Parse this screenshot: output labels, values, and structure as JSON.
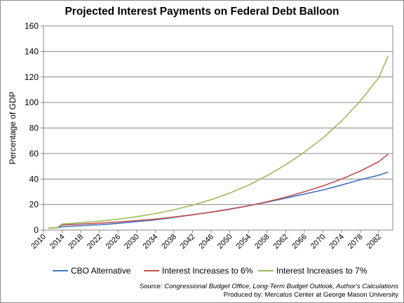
{
  "source": {
    "prefix": "Source: ",
    "italic": "Congressional Budget Office, Long-Term Budget Outlook, Author's Calculations",
    "produced_by": "Produced by: Mercatus Center at George Mason University"
  },
  "chart_data": {
    "type": "line",
    "title": "Projected Interest Payments on Federal Debt Balloon",
    "xlabel": "",
    "ylabel": "Percentage of GDP",
    "xlim": [
      2010,
      2085
    ],
    "ylim": [
      0,
      160
    ],
    "yticks": [
      0,
      20,
      40,
      60,
      80,
      100,
      120,
      140,
      160
    ],
    "xticks": [
      2010,
      2014,
      2018,
      2022,
      2026,
      2030,
      2034,
      2038,
      2042,
      2046,
      2050,
      2054,
      2058,
      2062,
      2066,
      2070,
      2074,
      2078,
      2082
    ],
    "grid": "horizontal",
    "legend_position": "bottom",
    "series": [
      {
        "name": "CBO Alternative",
        "color": "#4472c4",
        "points": [
          [
            2011,
            1.5
          ],
          [
            2012,
            1.6
          ],
          [
            2013,
            2.0
          ],
          [
            2014,
            2.6
          ],
          [
            2016,
            3.0
          ],
          [
            2018,
            3.4
          ],
          [
            2020,
            3.8
          ],
          [
            2022,
            4.1
          ],
          [
            2024,
            4.6
          ],
          [
            2026,
            5.3
          ],
          [
            2030,
            6.6
          ],
          [
            2034,
            8.0
          ],
          [
            2038,
            9.9
          ],
          [
            2042,
            12.0
          ],
          [
            2046,
            14.1
          ],
          [
            2050,
            16.5
          ],
          [
            2054,
            19.1
          ],
          [
            2058,
            21.9
          ],
          [
            2062,
            25.0
          ],
          [
            2066,
            28.2
          ],
          [
            2070,
            31.4
          ],
          [
            2074,
            35.3
          ],
          [
            2078,
            39.4
          ],
          [
            2082,
            43.0
          ],
          [
            2084,
            45.4
          ]
        ]
      },
      {
        "name": "Interest Increases to 6%",
        "color": "#c0504d",
        "points": [
          [
            2011,
            1.5
          ],
          [
            2012,
            1.6
          ],
          [
            2013,
            2.0
          ],
          [
            2014,
            4.0
          ],
          [
            2016,
            4.3
          ],
          [
            2018,
            4.7
          ],
          [
            2020,
            5.0
          ],
          [
            2022,
            5.4
          ],
          [
            2026,
            6.3
          ],
          [
            2030,
            7.4
          ],
          [
            2034,
            8.6
          ],
          [
            2038,
            10.2
          ],
          [
            2042,
            12.0
          ],
          [
            2046,
            14.0
          ],
          [
            2050,
            16.3
          ],
          [
            2054,
            19.0
          ],
          [
            2058,
            22.2
          ],
          [
            2062,
            25.8
          ],
          [
            2066,
            30.0
          ],
          [
            2070,
            34.6
          ],
          [
            2074,
            40.0
          ],
          [
            2078,
            46.2
          ],
          [
            2082,
            53.6
          ],
          [
            2084,
            59.6
          ]
        ]
      },
      {
        "name": "Interest Increases to 7%",
        "color": "#9bbb59",
        "points": [
          [
            2011,
            1.5
          ],
          [
            2012,
            1.6
          ],
          [
            2013,
            2.0
          ],
          [
            2014,
            4.8
          ],
          [
            2016,
            5.3
          ],
          [
            2018,
            5.8
          ],
          [
            2020,
            6.3
          ],
          [
            2022,
            7.0
          ],
          [
            2026,
            8.5
          ],
          [
            2030,
            10.5
          ],
          [
            2034,
            12.9
          ],
          [
            2038,
            15.9
          ],
          [
            2042,
            19.5
          ],
          [
            2046,
            23.8
          ],
          [
            2050,
            29.0
          ],
          [
            2054,
            35.2
          ],
          [
            2058,
            42.6
          ],
          [
            2062,
            51.2
          ],
          [
            2066,
            61.0
          ],
          [
            2070,
            72.2
          ],
          [
            2074,
            85.5
          ],
          [
            2078,
            101.0
          ],
          [
            2082,
            119.5
          ],
          [
            2084,
            136.5
          ]
        ]
      }
    ]
  }
}
